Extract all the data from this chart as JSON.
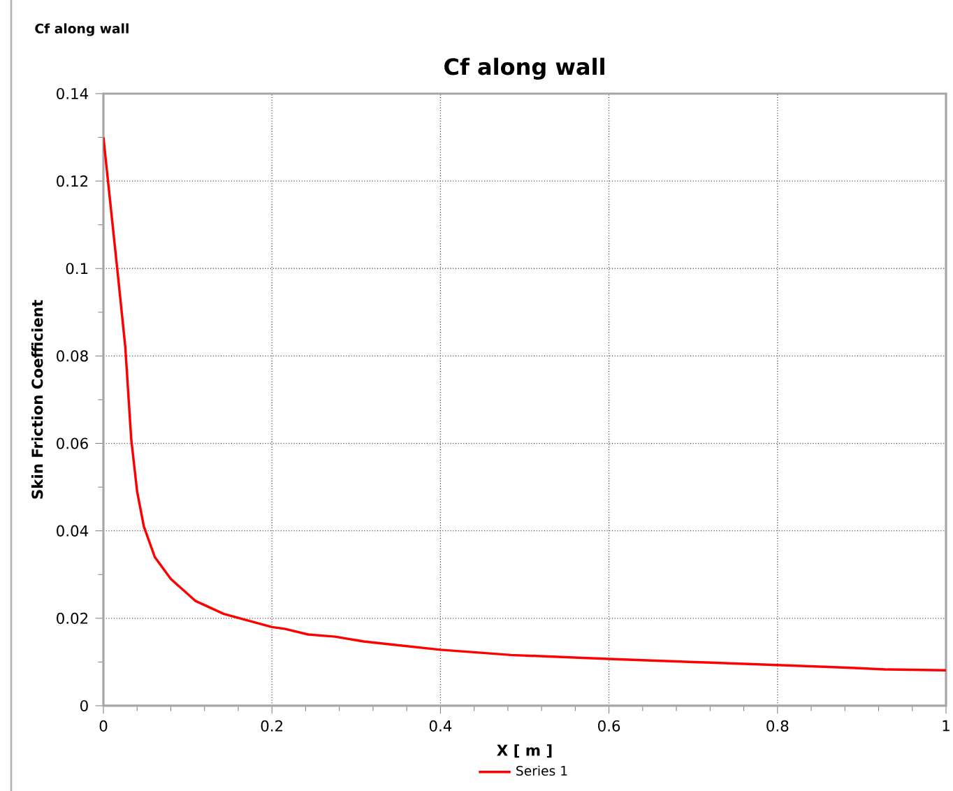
{
  "chart_data": {
    "type": "line",
    "title": "Cf along wall",
    "xlabel": "X [ m ]",
    "ylabel": "Skin Friction Coefficient",
    "annotations": [
      "Cf along wall"
    ],
    "xlim": [
      0,
      1
    ],
    "xticks": [
      0,
      0.2,
      0.4,
      0.6,
      0.8,
      1
    ],
    "ylim": [
      0,
      0.14
    ],
    "yticks": [
      0,
      0.02,
      0.04,
      0.06,
      0.08,
      0.1,
      0.12,
      0.14
    ],
    "grid": true,
    "legend": "bottom",
    "marker": "none",
    "line_style": "solid",
    "series": [
      {
        "name": "Series 1",
        "color": "#ff0000",
        "x": [
          0,
          0.018,
          0.026,
          0.033,
          0.04,
          0.048,
          0.061,
          0.08,
          0.109,
          0.143,
          0.2,
          0.215,
          0.243,
          0.275,
          0.309,
          0.347,
          0.4,
          0.484,
          0.6,
          0.701,
          0.8,
          0.883,
          0.928,
          1.0
        ],
        "values": [
          0.13,
          0.097,
          0.082,
          0.061,
          0.049,
          0.041,
          0.034,
          0.029,
          0.024,
          0.021,
          0.018,
          0.0176,
          0.0163,
          0.0158,
          0.0147,
          0.0139,
          0.0128,
          0.0116,
          0.0107,
          0.01,
          0.0093,
          0.0087,
          0.0083,
          0.0081
        ]
      }
    ]
  }
}
